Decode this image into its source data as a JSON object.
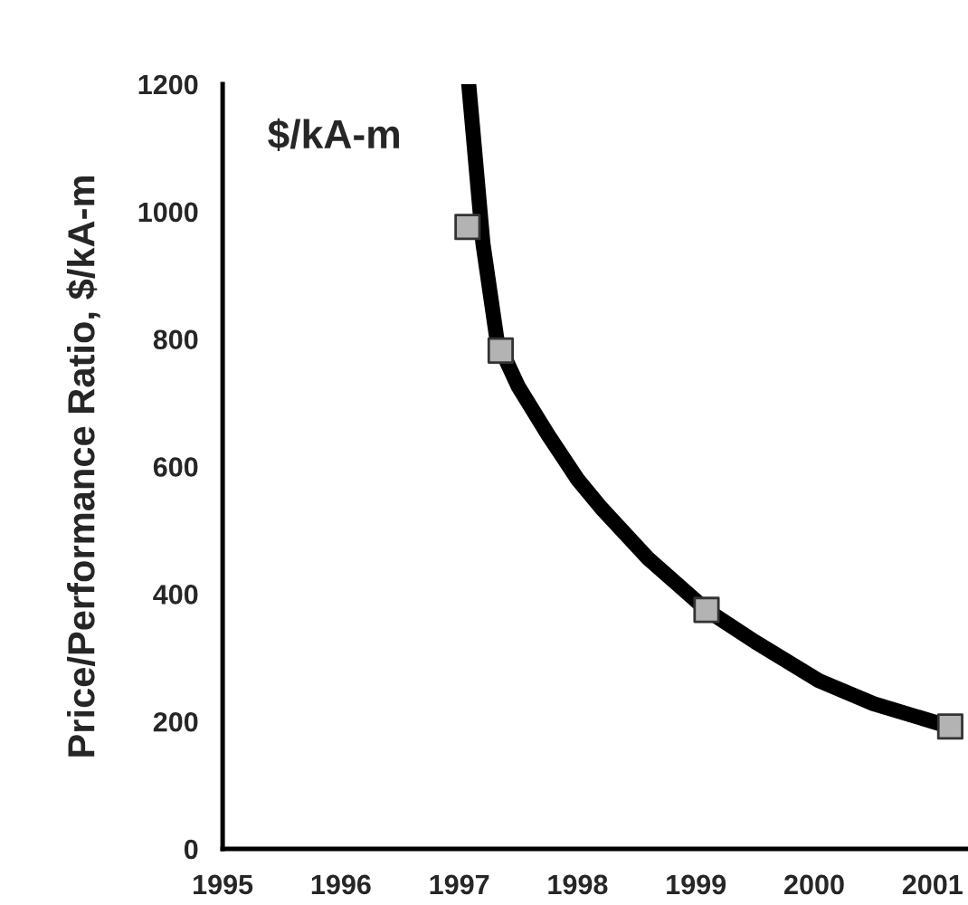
{
  "chart_data": {
    "type": "scatter",
    "ylabel": "Price/Performance Ratio, $/kA-m",
    "annotations": [
      "$/kA-m"
    ],
    "xlim": [
      1995,
      2001.3
    ],
    "xticks": [
      1995,
      1996,
      1997,
      1998,
      1999,
      2000,
      2001
    ],
    "ylim": [
      0,
      1200
    ],
    "yticks": [
      0,
      200,
      400,
      600,
      800,
      1000,
      1200
    ],
    "grid": false,
    "legend": false,
    "series": [
      {
        "type": "line",
        "color": "#000000",
        "marker": "none",
        "line_style": "solid",
        "x": [
          1997.08,
          1997.2,
          1997.32,
          1997.5,
          1997.75,
          1998,
          1998.2,
          1998.6,
          1999.09,
          1999.5,
          2000.04,
          2000.5,
          2001.14
        ],
        "values": [
          1200,
          950,
          797,
          725,
          650,
          580,
          535,
          455,
          375,
          325,
          264,
          228,
          192
        ]
      },
      {
        "color": "#b3b3b3",
        "marker": "square",
        "x": [
          1997.07,
          1997.35,
          1999.09,
          2001.15
        ],
        "values": [
          976,
          782,
          375,
          192
        ]
      }
    ]
  }
}
